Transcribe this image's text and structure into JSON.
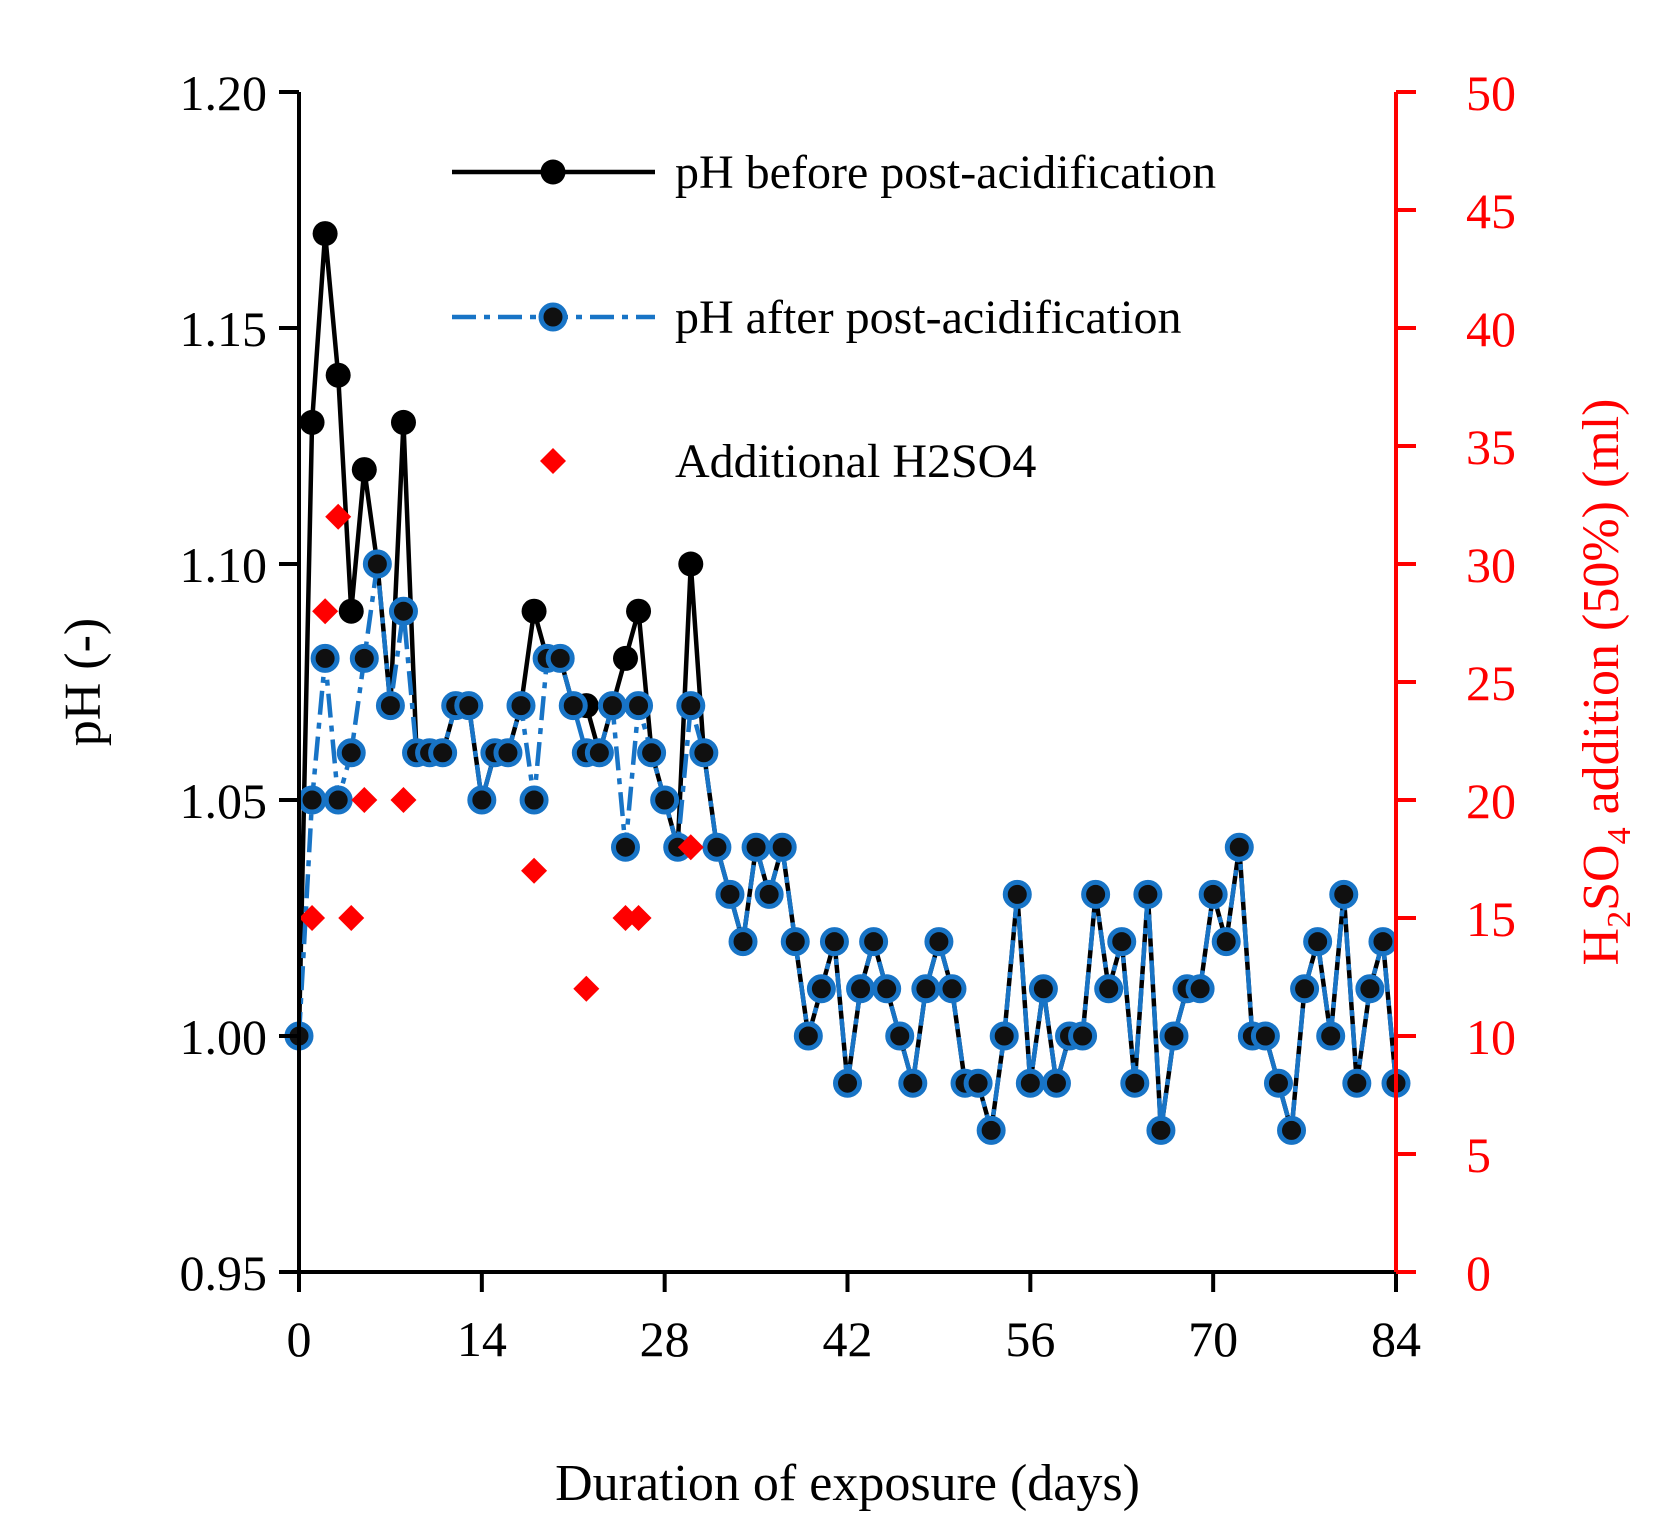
{
  "chart_data": {
    "type": "line",
    "xlabel": "Duration of exposure (days)",
    "ylabel": "pH (-)",
    "y2label_parts": [
      "H",
      "2",
      "SO",
      "4",
      " addition (50%) (ml)"
    ],
    "xlim": [
      0,
      84
    ],
    "ylim": [
      0.95,
      1.2
    ],
    "y2lim": [
      0,
      50
    ],
    "xticks": [
      "0",
      "14",
      "28",
      "42",
      "56",
      "70",
      "84"
    ],
    "yticks": [
      "0.95",
      "1.00",
      "1.05",
      "1.10",
      "1.15",
      "1.20"
    ],
    "y2ticks": [
      "0",
      "5",
      "10",
      "15",
      "20",
      "25",
      "30",
      "35",
      "40",
      "45",
      "50"
    ],
    "colors": {
      "before": "#000000",
      "after": "#1874c6",
      "acid": "#ff0000",
      "axis2": "#ff0000",
      "marker_dot": "#101010"
    },
    "legend": [
      "pH before post-acidification",
      "pH after post-acidification",
      "Additional H2SO4"
    ],
    "series": [
      {
        "name": "pH before post-acidification",
        "x": [
          0,
          1,
          2,
          3,
          4,
          5,
          6,
          7,
          8,
          9,
          10,
          11,
          12,
          13,
          14,
          15,
          16,
          17,
          18,
          19,
          20,
          21,
          22,
          23,
          24,
          25,
          26,
          27,
          28,
          29,
          30,
          31,
          32,
          33,
          34,
          35,
          36,
          37,
          38,
          39,
          40,
          41,
          42,
          43,
          44,
          45,
          46,
          47,
          48,
          49,
          50,
          51,
          52,
          53,
          54,
          55,
          56,
          57,
          58,
          59,
          60,
          61,
          62,
          63,
          64,
          65,
          66,
          67,
          68,
          69,
          70,
          71,
          72,
          73,
          74,
          75,
          76,
          77,
          78,
          79,
          80,
          81,
          82,
          83,
          84
        ],
        "y": [
          1.0,
          1.13,
          1.17,
          1.14,
          1.09,
          1.12,
          1.1,
          1.07,
          1.13,
          1.06,
          1.06,
          1.06,
          1.07,
          1.07,
          1.05,
          1.06,
          1.06,
          1.07,
          1.09,
          1.08,
          1.08,
          1.07,
          1.07,
          1.06,
          1.07,
          1.08,
          1.09,
          1.06,
          1.05,
          1.04,
          1.1,
          1.06,
          1.04,
          1.03,
          1.02,
          1.04,
          1.03,
          1.04,
          1.02,
          1.0,
          1.01,
          1.02,
          0.99,
          1.01,
          1.02,
          1.01,
          1.0,
          0.99,
          1.01,
          1.02,
          1.01,
          0.99,
          0.99,
          0.98,
          1.0,
          1.03,
          0.99,
          1.01,
          0.99,
          1.0,
          1.0,
          1.03,
          1.01,
          1.02,
          0.99,
          1.03,
          0.98,
          1.0,
          1.01,
          1.01,
          1.03,
          1.02,
          1.04,
          1.0,
          1.0,
          0.99,
          0.98,
          1.01,
          1.02,
          1.0,
          1.03,
          0.99,
          1.01,
          1.02,
          0.99
        ]
      },
      {
        "name": "pH after post-acidification",
        "x": [
          0,
          1,
          2,
          3,
          4,
          5,
          6,
          7,
          8,
          9,
          10,
          11,
          12,
          13,
          14,
          15,
          16,
          17,
          18,
          19,
          20,
          21,
          22,
          23,
          24,
          25,
          26,
          27,
          28,
          29,
          30,
          31,
          32,
          33,
          34,
          35,
          36,
          37,
          38,
          39,
          40,
          41,
          42,
          43,
          44,
          45,
          46,
          47,
          48,
          49,
          50,
          51,
          52,
          53,
          54,
          55,
          56,
          57,
          58,
          59,
          60,
          61,
          62,
          63,
          64,
          65,
          66,
          67,
          68,
          69,
          70,
          71,
          72,
          73,
          74,
          75,
          76,
          77,
          78,
          79,
          80,
          81,
          82,
          83,
          84
        ],
        "y": [
          1.0,
          1.05,
          1.08,
          1.05,
          1.06,
          1.08,
          1.1,
          1.07,
          1.09,
          1.06,
          1.06,
          1.06,
          1.07,
          1.07,
          1.05,
          1.06,
          1.06,
          1.07,
          1.05,
          1.08,
          1.08,
          1.07,
          1.06,
          1.06,
          1.07,
          1.04,
          1.07,
          1.06,
          1.05,
          1.04,
          1.07,
          1.06,
          1.04,
          1.03,
          1.02,
          1.04,
          1.03,
          1.04,
          1.02,
          1.0,
          1.01,
          1.02,
          0.99,
          1.01,
          1.02,
          1.01,
          1.0,
          0.99,
          1.01,
          1.02,
          1.01,
          0.99,
          0.99,
          0.98,
          1.0,
          1.03,
          0.99,
          1.01,
          0.99,
          1.0,
          1.0,
          1.03,
          1.01,
          1.02,
          0.99,
          1.03,
          0.98,
          1.0,
          1.01,
          1.01,
          1.03,
          1.02,
          1.04,
          1.0,
          1.0,
          0.99,
          0.98,
          1.01,
          1.02,
          1.0,
          1.03,
          0.99,
          1.01,
          1.02,
          0.99
        ]
      },
      {
        "name": "Additional H2SO4",
        "axis": "right",
        "x": [
          1,
          2,
          3,
          4,
          5,
          8,
          18,
          22,
          25,
          26,
          30
        ],
        "y": [
          15,
          28,
          32,
          15,
          20,
          20,
          17,
          12,
          15,
          15,
          18
        ]
      }
    ]
  }
}
